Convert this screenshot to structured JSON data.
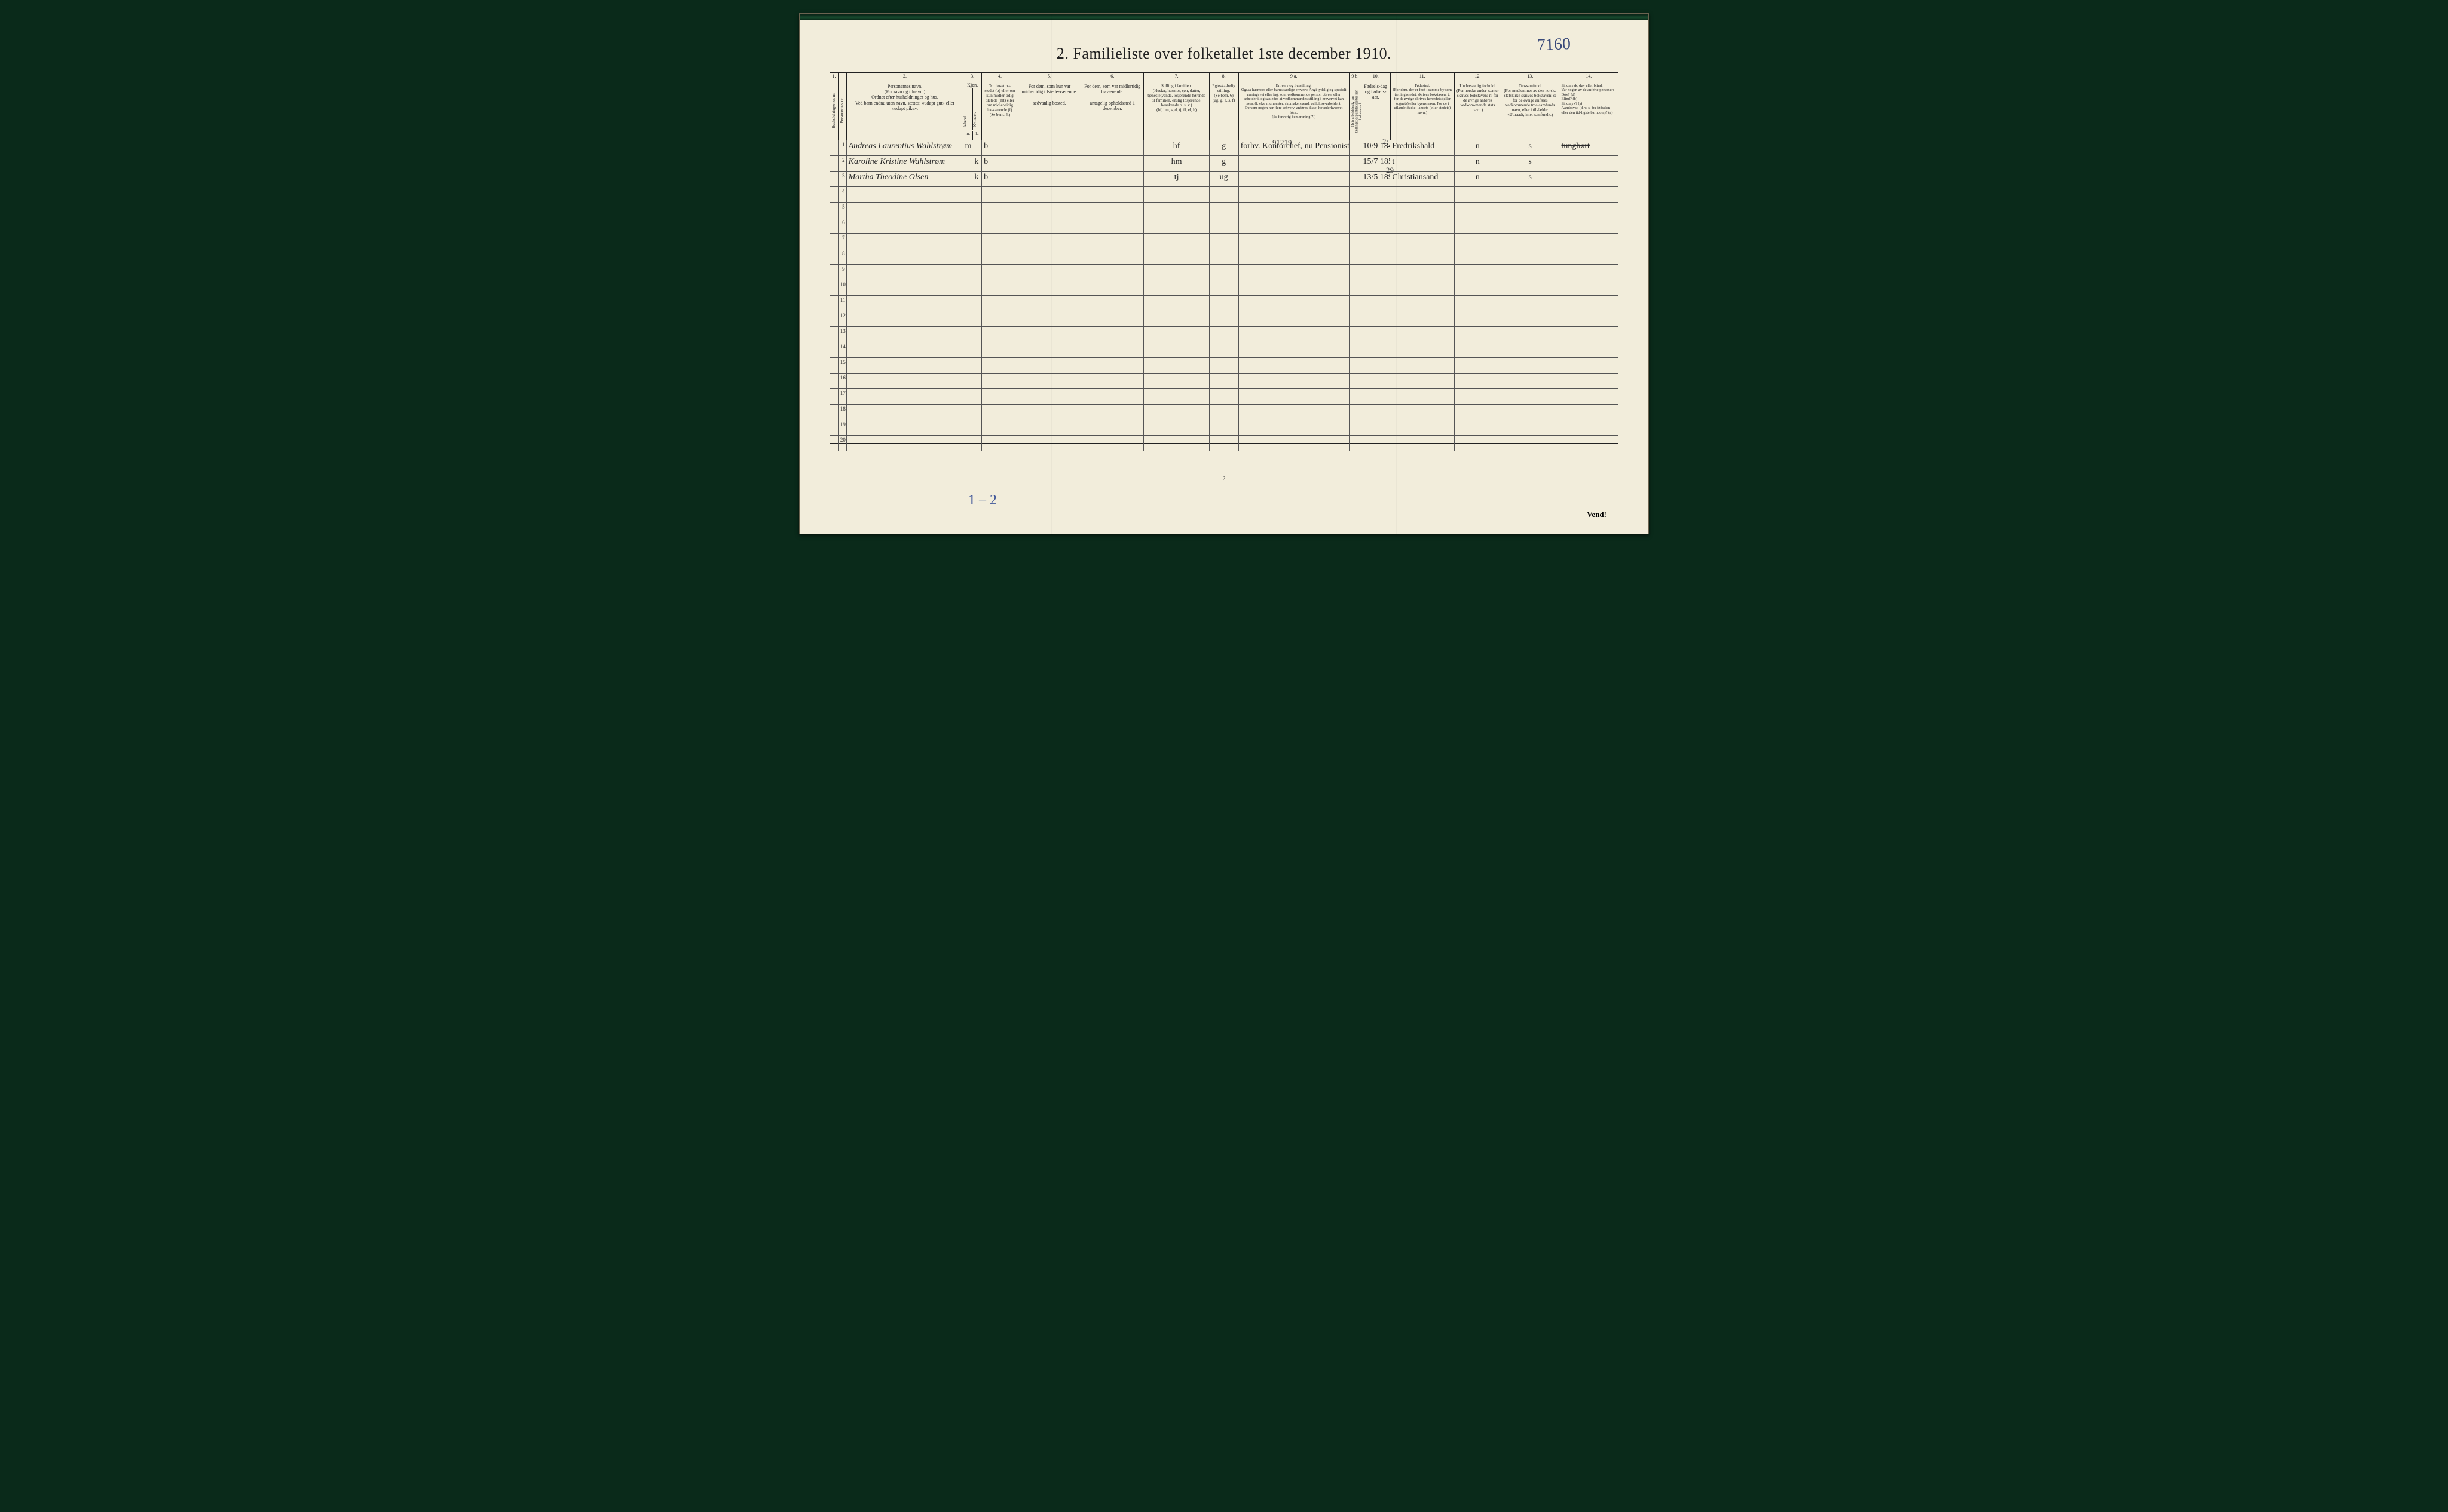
{
  "page": {
    "top_right_number": "7160",
    "title": "2.   Familieliste over folketallet 1ste december 1910.",
    "footer_page_number": "2",
    "vend": "Vend!",
    "pencil_note": "1 – 2"
  },
  "columns": {
    "c1": {
      "num": "1.",
      "label": "Husholdningernes nr."
    },
    "c1b": {
      "num": "",
      "label": "Personernes nr."
    },
    "c2": {
      "num": "2.",
      "label": "Personernes navn.\n(Fornavn og tilnavn.)\nOrdnet efter husholdninger og hus.\nVed barn endnu uten navn, sættes: «udøpt gut» eller «udøpt pike»."
    },
    "c3": {
      "num": "3.",
      "label": "Kjøn.",
      "sub_m": "m.",
      "sub_k": "k.",
      "sub_top_m": "Mænd.",
      "sub_top_k": "Kvinder."
    },
    "c4": {
      "num": "4.",
      "label": "Om bosat paa stedet (b) eller om kun midler-tidig tilstede (mt) eller om midler-tidig fra-værende (f). (Se bem. 4.)"
    },
    "c5": {
      "num": "5.",
      "label": "For dem, som kun var midlertidig tilstede-værende:\n\nsedvanlig bosted."
    },
    "c6": {
      "num": "6.",
      "label": "For dem, som var midlertidig fraværende:\n\nantagelig opholdssted 1 december."
    },
    "c7": {
      "num": "7.",
      "label": "Stilling i familien.\n(Husfar, husmor, søn, datter, tjenestetyende, losjerende hørende til familien, enslig losjerende, besøkende o. s. v.)\n(hf, hm, s, d, tj, fl, el, b)"
    },
    "c8": {
      "num": "8.",
      "label": "Egteska-belig stilling.\n(Se bem. 6)\n(ug, g, e, s, f)"
    },
    "c9": {
      "num": "9 a.",
      "label": "Erhverv og livsstilling.\nOgsaa husmors eller barns særlige erhverv. Angi tydelig og specielt næringsvei eller fag, som vedkommende person utøver eller arbeider i, og saaledes at vedkommendes stilling i erhvervet kan sees. (f. eks. murmester, skomakersvend, cellulose-arbeider). Dersom nogen har flere erhverv, anføres disse, hovederhvervet først.\n(Se forøvrig bemerkning 7.)"
    },
    "c9b": {
      "num": "9 b.",
      "label": "Hvis arbeidsledig paa tællingstidspunktet sættes her bokstaven l."
    },
    "c10": {
      "num": "10.",
      "label": "Fødsels-dag og fødsels-aar."
    },
    "c11": {
      "num": "11.",
      "label": "Fødested.\n(For dem, der er født i samme by som tællingsstedet, skrives bokstaven: t; for de øvrige skrives herredets (eller sognets) eller byens navn. For de i utlandet fødte: landets (eller stedets) navn.)"
    },
    "c12": {
      "num": "12.",
      "label": "Undersaatlig forhold.\n(For norske under-saatter skrives bokstaven: n; for de øvrige anføres vedkom-mende stats navn.)"
    },
    "c13": {
      "num": "13.",
      "label": "Trossamfund.\n(For medlemmer av den norske statskirke skrives bokstaven: s; for de øvrige anføres vedkommende tros-samfunds navn, eller i til-fælde: «Uttraadt, intet samfund».)"
    },
    "c14": {
      "num": "14.",
      "label": "Sindssvak, døv eller blind.\nVar nogen av de anførte personer:\nDøv?   (d)\nBlind?  (b)\nSindssyk? (s)\nAandssvak (d. v. s. fra fødselen eller den tid-ligste barndom)? (a)"
    }
  },
  "annotations": {
    "a1": "91219",
    "a2": "2/",
    "a3": "29"
  },
  "rows": [
    {
      "n": "1",
      "name": "Andreas Laurentius Wahlstrøm",
      "m": "m",
      "k": "",
      "b": "b",
      "c5": "",
      "c6": "",
      "c7": "hf",
      "c8": "g",
      "c9": "forhv. Kontorchef, nu Pensionist",
      "c10": "10/9 1842",
      "c11": "Fredrikshald",
      "c12": "n",
      "c13": "s",
      "c14": "tunghørt",
      "c14_struck": true
    },
    {
      "n": "2",
      "name": "Karoline Kristine Wahlstrøm",
      "m": "",
      "k": "k",
      "b": "b",
      "c5": "",
      "c6": "",
      "c7": "hm",
      "c8": "g",
      "c9": "",
      "c10": "15/7 1857",
      "c11": "t",
      "c12": "n",
      "c13": "s",
      "c14": ""
    },
    {
      "n": "3",
      "name": "Martha Theodine Olsen",
      "m": "",
      "k": "k",
      "b": "b",
      "c5": "",
      "c6": "",
      "c7": "tj",
      "c8": "ug",
      "c9": "",
      "c10": "13/5 1892",
      "c11": "Christiansand",
      "c12": "n",
      "c13": "s",
      "c14": ""
    },
    {
      "n": "4"
    },
    {
      "n": "5"
    },
    {
      "n": "6"
    },
    {
      "n": "7"
    },
    {
      "n": "8"
    },
    {
      "n": "9"
    },
    {
      "n": "10"
    },
    {
      "n": "11"
    },
    {
      "n": "12"
    },
    {
      "n": "13"
    },
    {
      "n": "14"
    },
    {
      "n": "15"
    },
    {
      "n": "16"
    },
    {
      "n": "17"
    },
    {
      "n": "18"
    },
    {
      "n": "19"
    },
    {
      "n": "20"
    }
  ]
}
